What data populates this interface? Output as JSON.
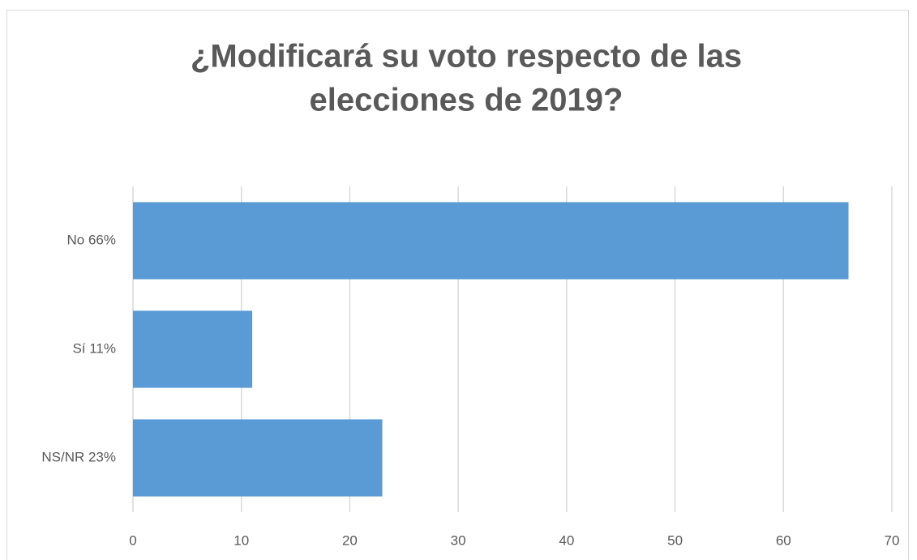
{
  "chart_data": {
    "type": "bar",
    "orientation": "horizontal",
    "title": [
      "¿Modificará su voto respecto de las",
      "elecciones de 2019?"
    ],
    "categories": [
      "No  66%",
      "Sí  11%",
      "NS/NR  23%"
    ],
    "values": [
      66,
      11,
      23
    ],
    "color": "#5b9bd5",
    "xlim": [
      0,
      70
    ],
    "xticks": [
      0,
      10,
      20,
      30,
      40,
      50,
      60,
      70
    ],
    "grid": true
  }
}
